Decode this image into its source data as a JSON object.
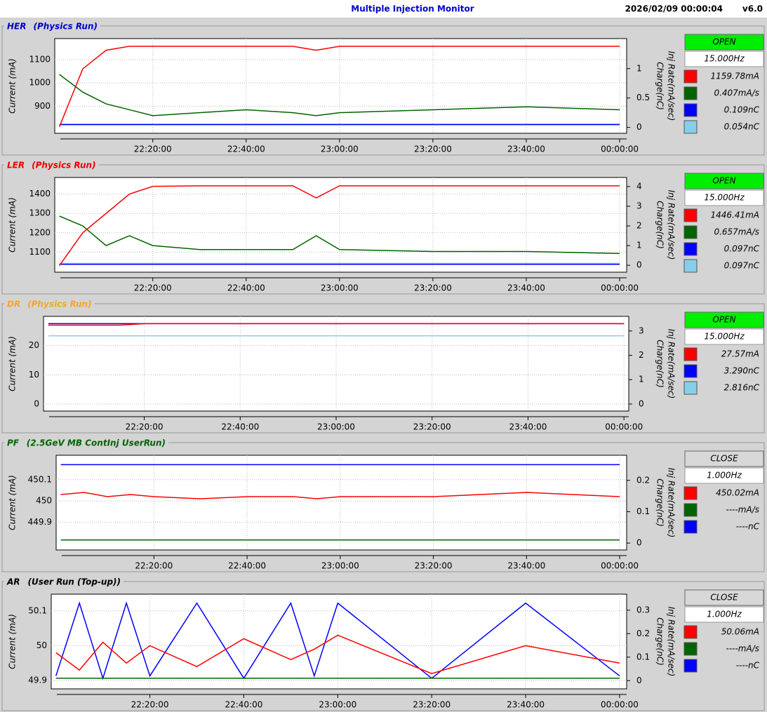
{
  "header": {
    "title": "Multiple Injection Monitor",
    "timestamp": "2026/02/09 00:00:04",
    "version": "v6.0"
  },
  "panels": [
    {
      "status": "OPEN",
      "status_color": "#00ee00",
      "rate": "15.000Hz",
      "readouts": [
        {
          "color": "#ff0000",
          "text": "1159.78mA"
        },
        {
          "color": "#006400",
          "text": "0.407mA/s"
        },
        {
          "color": "#0000ff",
          "text": "0.109nC"
        },
        {
          "color": "#87ceeb",
          "text": "0.054nC"
        }
      ]
    },
    {
      "status": "OPEN",
      "status_color": "#00ee00",
      "rate": "15.000Hz",
      "readouts": [
        {
          "color": "#ff0000",
          "text": "1446.41mA"
        },
        {
          "color": "#006400",
          "text": "0.657mA/s"
        },
        {
          "color": "#0000ff",
          "text": "0.097nC"
        },
        {
          "color": "#87ceeb",
          "text": "0.097nC"
        }
      ]
    },
    {
      "status": "OPEN",
      "status_color": "#00ee00",
      "rate": "15.000Hz",
      "readouts": [
        {
          "color": "#ff0000",
          "text": "27.57mA"
        },
        {
          "color": "#0000ff",
          "text": "3.290nC"
        },
        {
          "color": "#87ceeb",
          "text": "2.816nC"
        }
      ]
    },
    {
      "status": "CLOSE",
      "status_color": "#d8d8d8",
      "rate": "1.000Hz",
      "readouts": [
        {
          "color": "#ff0000",
          "text": "450.02mA"
        },
        {
          "color": "#006400",
          "text": "----mA/s"
        },
        {
          "color": "#0000ff",
          "text": "----nC"
        }
      ]
    },
    {
      "status": "CLOSE",
      "status_color": "#d8d8d8",
      "rate": "1.000Hz",
      "readouts": [
        {
          "color": "#ff0000",
          "text": "50.06mA"
        },
        {
          "color": "#006400",
          "text": "----mA/s"
        },
        {
          "color": "#0000ff",
          "text": "----nC"
        }
      ]
    }
  ],
  "chart_data": [
    {
      "type": "line",
      "title": "HER",
      "subtitle": "(Physics Run)",
      "title_color": "#0000cc",
      "subtitle_color": "#0000cc",
      "ylabel": "Current (mA)",
      "y2label": [
        "Charge(nC)",
        "Inj Rate(mA/sec)"
      ],
      "grid": true,
      "x": [
        "22:00:00",
        "22:05:00",
        "22:10:00",
        "22:15:00",
        "22:20:00",
        "22:30:00",
        "22:40:00",
        "22:50:00",
        "22:55:00",
        "23:00:00",
        "23:20:00",
        "23:40:00",
        "00:00:00"
      ],
      "xlim": [
        "21:59:00",
        "00:01:30"
      ],
      "xticks": [
        "22:20:00",
        "22:40:00",
        "23:00:00",
        "23:20:00",
        "23:40:00",
        "00:00:00"
      ],
      "ylim": [
        784,
        1190
      ],
      "yticks": [
        900,
        1000,
        1100
      ],
      "y2lim": [
        -0.1,
        1.51
      ],
      "y2ticks": [
        0,
        0.5,
        1
      ],
      "series": [
        {
          "color": "#006400",
          "axis": "y2",
          "values": [
            0.9,
            0.6,
            0.4,
            0.3,
            0.2,
            0.25,
            0.3,
            0.25,
            0.2,
            0.25,
            0.3,
            0.35,
            0.3
          ]
        },
        {
          "color": "#87ceeb",
          "axis": "y2",
          "values": [
            0.04,
            0.04,
            0.04,
            0.04,
            0.04,
            0.04,
            0.04,
            0.04,
            0.04,
            0.04,
            0.04,
            0.04,
            0.04
          ]
        },
        {
          "color": "#0000ff",
          "axis": "y2",
          "values": [
            0.05,
            0.05,
            0.05,
            0.05,
            0.05,
            0.05,
            0.05,
            0.05,
            0.05,
            0.05,
            0.05,
            0.05,
            0.05
          ]
        },
        {
          "color": "#ff0000",
          "values": [
            812,
            1060,
            1140,
            1157,
            1157,
            1157,
            1157,
            1157,
            1140,
            1157,
            1157,
            1157,
            1157
          ]
        }
      ]
    },
    {
      "type": "line",
      "title": "LER",
      "subtitle": "(Physics Run)",
      "title_color": "#ee0000",
      "subtitle_color": "#ee0000",
      "ylabel": "Current (mA)",
      "y2label": [
        "Charge(nC)",
        "Inj Rate(mA/sec)"
      ],
      "grid": true,
      "x": [
        "22:00:00",
        "22:05:00",
        "22:10:00",
        "22:15:00",
        "22:20:00",
        "22:30:00",
        "22:40:00",
        "22:50:00",
        "22:55:00",
        "23:00:00",
        "23:20:00",
        "23:40:00",
        "00:00:00"
      ],
      "xlim": [
        "21:59:00",
        "00:01:30"
      ],
      "xticks": [
        "22:20:00",
        "22:40:00",
        "23:00:00",
        "23:20:00",
        "23:40:00",
        "00:00:00"
      ],
      "ylim": [
        996,
        1486
      ],
      "yticks": [
        1100,
        1200,
        1300,
        1400
      ],
      "y2lim": [
        -0.35,
        4.46
      ],
      "y2ticks": [
        0,
        1,
        2,
        3,
        4
      ],
      "series": [
        {
          "color": "#006400",
          "axis": "y2",
          "values": [
            2.5,
            2,
            1,
            1.5,
            1,
            0.8,
            0.8,
            0.8,
            1.5,
            0.8,
            0.7,
            0.7,
            0.6
          ]
        },
        {
          "color": "#87ceeb",
          "axis": "y2",
          "values": [
            0.1,
            0.1,
            0.1,
            0.1,
            0.1,
            0.1,
            0.1,
            0.1,
            0.1,
            0.1,
            0.1,
            0.1,
            0.1
          ]
        },
        {
          "color": "#0000ff",
          "axis": "y2",
          "values": [
            0.05,
            0.05,
            0.05,
            0.05,
            0.05,
            0.05,
            0.05,
            0.05,
            0.05,
            0.05,
            0.05,
            0.05,
            0.05
          ]
        },
        {
          "color": "#ff0000",
          "values": [
            1030,
            1200,
            1300,
            1400,
            1440,
            1443,
            1443,
            1443,
            1380,
            1443,
            1443,
            1443,
            1443
          ]
        }
      ]
    },
    {
      "type": "line",
      "title": "DR",
      "subtitle": "(Physics Run)",
      "title_color": "#f5a623",
      "subtitle_color": "#f5a623",
      "ylabel": "Current (mA)",
      "y2label": [
        "Charge(nC)",
        "Inj Rate(mA/sec)"
      ],
      "grid": true,
      "x": [
        "22:00:00",
        "22:05:00",
        "22:10:00",
        "22:15:00",
        "22:20:00",
        "22:30:00",
        "22:40:00",
        "22:50:00",
        "22:55:00",
        "23:00:00",
        "23:20:00",
        "23:40:00",
        "00:00:00"
      ],
      "xlim": [
        "21:59:00",
        "00:01:00"
      ],
      "xticks": [
        "22:20:00",
        "22:40:00",
        "23:00:00",
        "23:20:00",
        "23:40:00",
        "00:00:00"
      ],
      "ylim": [
        -2.4,
        30
      ],
      "yticks": [
        0,
        10,
        20
      ],
      "y2lim": [
        -0.29,
        3.6
      ],
      "y2ticks": [
        0,
        1,
        2,
        3
      ],
      "series": [
        {
          "color": "#87ceeb",
          "axis": "y2",
          "values": [
            2.8,
            2.8,
            2.8,
            2.8,
            2.8,
            2.8,
            2.8,
            2.8,
            2.8,
            2.8,
            2.8,
            2.8,
            2.8
          ]
        },
        {
          "color": "#0000ff",
          "axis": "y2",
          "values": [
            3.3,
            3.3,
            3.3,
            3.3,
            3.3,
            3.3,
            3.3,
            3.3,
            3.3,
            3.3,
            3.3,
            3.3,
            3.3
          ]
        },
        {
          "color": "#ff0000",
          "values": [
            27,
            27,
            27,
            27,
            27.5,
            27.5,
            27.5,
            27.5,
            27.5,
            27.5,
            27.5,
            27.5,
            27.5
          ]
        }
      ]
    },
    {
      "type": "line",
      "title": "PF",
      "subtitle": "(2.5GeV MB ContInj UserRun)",
      "title_color": "#006400",
      "subtitle_color": "#006400",
      "ylabel": "Current (mA)",
      "y2label": [
        "Charge(nC)",
        "Inj Rate(mA/sec)"
      ],
      "grid": true,
      "x": [
        "22:00:00",
        "22:05:00",
        "22:10:00",
        "22:15:00",
        "22:20:00",
        "22:30:00",
        "22:40:00",
        "22:50:00",
        "22:55:00",
        "23:00:00",
        "23:20:00",
        "23:40:00",
        "00:00:00"
      ],
      "xlim": [
        "21:59:00",
        "00:01:30"
      ],
      "xticks": [
        "22:20:00",
        "22:40:00",
        "23:00:00",
        "23:20:00",
        "23:40:00",
        "00:00:00"
      ],
      "ylim": [
        449.769,
        450.215
      ],
      "yticks": [
        449.9,
        450,
        450.1
      ],
      "y2lim": [
        -0.022,
        0.28
      ],
      "y2ticks": [
        0,
        0.1,
        0.2
      ],
      "series": [
        {
          "color": "#0000ff",
          "axis": "y2",
          "values": [
            0.25,
            0.25,
            0.25,
            0.25,
            0.25,
            0.25,
            0.25,
            0.25,
            0.25,
            0.25,
            0.25,
            0.25,
            0.25
          ]
        },
        {
          "color": "#006400",
          "axis": "y2",
          "values": [
            0.01,
            0.01,
            0.01,
            0.01,
            0.01,
            0.01,
            0.01,
            0.01,
            0.01,
            0.01,
            0.01,
            0.01,
            0.01
          ]
        },
        {
          "color": "#ff0000",
          "values": [
            450.03,
            450.04,
            450.02,
            450.03,
            450.02,
            450.01,
            450.02,
            450.02,
            450.01,
            450.02,
            450.02,
            450.04,
            450.02
          ]
        }
      ]
    },
    {
      "type": "line",
      "title": "AR",
      "subtitle": "(User Run (Top-up))",
      "title_color": "#000000",
      "subtitle_color": "#000000",
      "ylabel": "Current (mA)",
      "y2label": [
        "Charge(nC)",
        "Inj Rate(mA/sec)"
      ],
      "grid": true,
      "x": [
        "22:00:00",
        "22:05:00",
        "22:10:00",
        "22:15:00",
        "22:20:00",
        "22:30:00",
        "22:40:00",
        "22:50:00",
        "22:55:00",
        "23:00:00",
        "23:20:00",
        "23:40:00",
        "00:00:00"
      ],
      "xlim": [
        "21:59:00",
        "00:01:30"
      ],
      "xticks": [
        "22:20:00",
        "22:40:00",
        "23:00:00",
        "23:20:00",
        "23:40:00",
        "00:00:00"
      ],
      "ylim": [
        49.876,
        50.148
      ],
      "yticks": [
        49.9,
        50,
        50.1
      ],
      "y2lim": [
        -0.035,
        0.368
      ],
      "y2ticks": [
        0,
        0.1,
        0.2,
        0.3
      ],
      "series": [
        {
          "color": "#0000ff",
          "axis": "y2",
          "values": [
            0.02,
            0.33,
            0.01,
            0.33,
            0.02,
            0.33,
            0.01,
            0.33,
            0.02,
            0.33,
            0.01,
            0.33,
            0.02
          ]
        },
        {
          "color": "#006400",
          "axis": "y2",
          "values": [
            0.01,
            0.01,
            0.01,
            0.01,
            0.01,
            0.01,
            0.01,
            0.01,
            0.01,
            0.01,
            0.01,
            0.01,
            0.01
          ]
        },
        {
          "color": "#ff0000",
          "values": [
            49.98,
            49.93,
            50.01,
            49.95,
            50.0,
            49.94,
            50.02,
            49.96,
            49.99,
            50.03,
            49.92,
            50.0,
            49.95
          ]
        }
      ]
    }
  ]
}
